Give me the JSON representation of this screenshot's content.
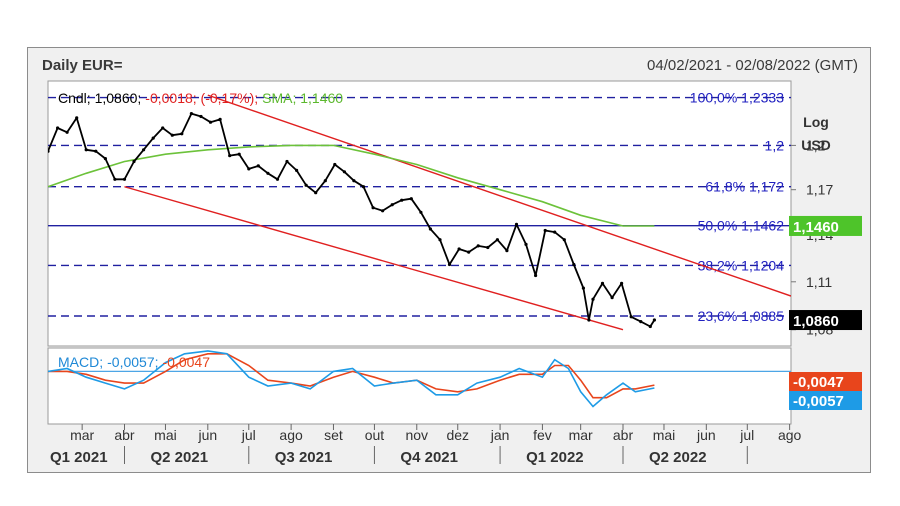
{
  "header": {
    "title": "Daily EUR=",
    "range": "04/02/2021 - 02/08/2022 (GMT)"
  },
  "chart_data": {
    "type": "line",
    "price_panel": {
      "legend": {
        "cndl_label": "Cndl; 1,0860;",
        "change": "-0,0018; (-0,17%);",
        "sma": "SMA; 1,1460"
      },
      "unit": [
        "Log",
        "USD"
      ],
      "y_scale": "log",
      "ylim": [
        1.07,
        1.245
      ],
      "y_ticks": [
        {
          "value": 1.2,
          "label": "1,2"
        },
        {
          "value": 1.17,
          "label": "1,17"
        },
        {
          "value": 1.14,
          "label": "1,14"
        },
        {
          "value": 1.11,
          "label": "1,11"
        },
        {
          "value": 1.08,
          "label": "1,08"
        }
      ],
      "fib_levels": [
        {
          "value": 1.2333,
          "label": "100,0% 1,2333"
        },
        {
          "value": 1.2,
          "label": "1,2"
        },
        {
          "value": 1.172,
          "label": "61,8% 1,172"
        },
        {
          "value": 1.1462,
          "label": "50,0% 1,1462"
        },
        {
          "value": 1.1204,
          "label": "38,2% 1,1204"
        },
        {
          "value": 1.0885,
          "label": "23,6% 1,0885"
        }
      ],
      "price_badge": {
        "label": "1,0860",
        "color": "#000000"
      },
      "sma_badge": {
        "label": "1,1460",
        "color": "#4ec42a"
      },
      "channel": {
        "color": "#e02020",
        "upper": [
          [
            "2021-06-01",
            1.235
          ],
          [
            "2022-08-02",
            1.101
          ]
        ],
        "lower": [
          [
            "2021-04-01",
            1.172
          ],
          [
            "2022-04-01",
            1.08
          ]
        ]
      },
      "close": [
        [
          "2021-02-04",
          1.196
        ],
        [
          "2021-02-11",
          1.212
        ],
        [
          "2021-02-18",
          1.209
        ],
        [
          "2021-02-25",
          1.219
        ],
        [
          "2021-03-04",
          1.197
        ],
        [
          "2021-03-11",
          1.196
        ],
        [
          "2021-03-18",
          1.191
        ],
        [
          "2021-03-25",
          1.177
        ],
        [
          "2021-04-01",
          1.177
        ],
        [
          "2021-04-08",
          1.189
        ],
        [
          "2021-04-15",
          1.197
        ],
        [
          "2021-04-22",
          1.205
        ],
        [
          "2021-04-29",
          1.212
        ],
        [
          "2021-05-06",
          1.207
        ],
        [
          "2021-05-13",
          1.208
        ],
        [
          "2021-05-20",
          1.222
        ],
        [
          "2021-05-27",
          1.22
        ],
        [
          "2021-06-03",
          1.216
        ],
        [
          "2021-06-10",
          1.218
        ],
        [
          "2021-06-17",
          1.193
        ],
        [
          "2021-06-24",
          1.194
        ],
        [
          "2021-07-01",
          1.184
        ],
        [
          "2021-07-08",
          1.186
        ],
        [
          "2021-07-15",
          1.181
        ],
        [
          "2021-07-22",
          1.177
        ],
        [
          "2021-07-29",
          1.189
        ],
        [
          "2021-08-05",
          1.183
        ],
        [
          "2021-08-12",
          1.173
        ],
        [
          "2021-08-19",
          1.168
        ],
        [
          "2021-08-26",
          1.176
        ],
        [
          "2021-09-02",
          1.187
        ],
        [
          "2021-09-09",
          1.182
        ],
        [
          "2021-09-16",
          1.176
        ],
        [
          "2021-09-23",
          1.172
        ],
        [
          "2021-09-30",
          1.158
        ],
        [
          "2021-10-07",
          1.156
        ],
        [
          "2021-10-14",
          1.16
        ],
        [
          "2021-10-21",
          1.163
        ],
        [
          "2021-10-28",
          1.164
        ],
        [
          "2021-11-04",
          1.155
        ],
        [
          "2021-11-11",
          1.144
        ],
        [
          "2021-11-18",
          1.137
        ],
        [
          "2021-11-25",
          1.121
        ],
        [
          "2021-12-02",
          1.131
        ],
        [
          "2021-12-09",
          1.129
        ],
        [
          "2021-12-16",
          1.133
        ],
        [
          "2021-12-23",
          1.132
        ],
        [
          "2021-12-30",
          1.137
        ],
        [
          "2022-01-06",
          1.13
        ],
        [
          "2022-01-13",
          1.147
        ],
        [
          "2022-01-20",
          1.134
        ],
        [
          "2022-01-27",
          1.114
        ],
        [
          "2022-02-03",
          1.143
        ],
        [
          "2022-02-10",
          1.142
        ],
        [
          "2022-02-17",
          1.137
        ],
        [
          "2022-02-24",
          1.121
        ],
        [
          "2022-03-03",
          1.106
        ],
        [
          "2022-03-07",
          1.086
        ],
        [
          "2022-03-10",
          1.099
        ],
        [
          "2022-03-17",
          1.109
        ],
        [
          "2022-03-24",
          1.1
        ],
        [
          "2022-03-31",
          1.109
        ],
        [
          "2022-04-07",
          1.088
        ],
        [
          "2022-04-14",
          1.085
        ],
        [
          "2022-04-21",
          1.082
        ],
        [
          "2022-04-24",
          1.086
        ]
      ],
      "sma": [
        [
          "2021-02-04",
          1.172
        ],
        [
          "2021-03-04",
          1.181
        ],
        [
          "2021-04-01",
          1.189
        ],
        [
          "2021-05-01",
          1.194
        ],
        [
          "2021-06-01",
          1.197
        ],
        [
          "2021-07-01",
          1.199
        ],
        [
          "2021-08-01",
          1.2
        ],
        [
          "2021-09-01",
          1.2
        ],
        [
          "2021-10-01",
          1.194
        ],
        [
          "2021-11-01",
          1.187
        ],
        [
          "2021-12-01",
          1.178
        ],
        [
          "2022-01-01",
          1.17
        ],
        [
          "2022-02-01",
          1.162
        ],
        [
          "2022-03-01",
          1.153
        ],
        [
          "2022-04-01",
          1.146
        ],
        [
          "2022-04-24",
          1.146
        ]
      ]
    },
    "macd_panel": {
      "legend": {
        "prefix": "MACD;",
        "macd": "-0,0057;",
        "signal": "-0,0047"
      },
      "badges": [
        {
          "label": "-0,0047",
          "color": "#e8451c"
        },
        {
          "label": "-0,0057",
          "color": "#1e9be6"
        }
      ],
      "ylim": [
        -0.018,
        0.008
      ],
      "zero_line": 0,
      "macd": [
        [
          "2021-02-04",
          0.0
        ],
        [
          "2021-02-18",
          0.001
        ],
        [
          "2021-03-04",
          -0.002
        ],
        [
          "2021-03-18",
          -0.004
        ],
        [
          "2021-04-01",
          -0.006
        ],
        [
          "2021-04-15",
          -0.003
        ],
        [
          "2021-05-01",
          0.003
        ],
        [
          "2021-05-15",
          0.006
        ],
        [
          "2021-06-01",
          0.007
        ],
        [
          "2021-06-15",
          0.006
        ],
        [
          "2021-07-01",
          -0.002
        ],
        [
          "2021-07-15",
          -0.005
        ],
        [
          "2021-08-01",
          -0.004
        ],
        [
          "2021-08-15",
          -0.006
        ],
        [
          "2021-09-01",
          0.0
        ],
        [
          "2021-09-15",
          0.001
        ],
        [
          "2021-10-01",
          -0.005
        ],
        [
          "2021-10-15",
          -0.004
        ],
        [
          "2021-11-01",
          -0.003
        ],
        [
          "2021-11-15",
          -0.008
        ],
        [
          "2021-12-01",
          -0.008
        ],
        [
          "2021-12-15",
          -0.004
        ],
        [
          "2022-01-01",
          -0.002
        ],
        [
          "2022-01-15",
          0.001
        ],
        [
          "2022-02-01",
          -0.002
        ],
        [
          "2022-02-10",
          0.004
        ],
        [
          "2022-02-20",
          0.001
        ],
        [
          "2022-03-01",
          -0.007
        ],
        [
          "2022-03-10",
          -0.012
        ],
        [
          "2022-03-20",
          -0.008
        ],
        [
          "2022-04-01",
          -0.004
        ],
        [
          "2022-04-10",
          -0.007
        ],
        [
          "2022-04-24",
          -0.0057
        ]
      ],
      "signal": [
        [
          "2021-02-04",
          0.0
        ],
        [
          "2021-02-18",
          0.0
        ],
        [
          "2021-03-04",
          -0.001
        ],
        [
          "2021-03-18",
          -0.003
        ],
        [
          "2021-04-01",
          -0.004
        ],
        [
          "2021-04-15",
          -0.004
        ],
        [
          "2021-05-01",
          0.0
        ],
        [
          "2021-05-15",
          0.004
        ],
        [
          "2021-06-01",
          0.006
        ],
        [
          "2021-06-15",
          0.006
        ],
        [
          "2021-07-01",
          0.002
        ],
        [
          "2021-07-15",
          -0.003
        ],
        [
          "2021-08-01",
          -0.004
        ],
        [
          "2021-08-15",
          -0.005
        ],
        [
          "2021-09-01",
          -0.002
        ],
        [
          "2021-09-15",
          0.0
        ],
        [
          "2021-10-01",
          -0.002
        ],
        [
          "2021-10-15",
          -0.004
        ],
        [
          "2021-11-01",
          -0.003
        ],
        [
          "2021-11-15",
          -0.006
        ],
        [
          "2021-12-01",
          -0.007
        ],
        [
          "2021-12-15",
          -0.006
        ],
        [
          "2022-01-01",
          -0.003
        ],
        [
          "2022-01-15",
          -0.001
        ],
        [
          "2022-02-01",
          -0.001
        ],
        [
          "2022-02-10",
          0.002
        ],
        [
          "2022-02-20",
          0.002
        ],
        [
          "2022-03-01",
          -0.003
        ],
        [
          "2022-03-10",
          -0.009
        ],
        [
          "2022-03-20",
          -0.009
        ],
        [
          "2022-04-01",
          -0.006
        ],
        [
          "2022-04-10",
          -0.006
        ],
        [
          "2022-04-24",
          -0.0047
        ]
      ]
    },
    "x_axis": {
      "xlim": [
        "2021-02-04",
        "2022-08-02"
      ],
      "months": [
        {
          "label": "mar",
          "date": "2021-03-01"
        },
        {
          "label": "abr",
          "date": "2021-04-01"
        },
        {
          "label": "mai",
          "date": "2021-05-01"
        },
        {
          "label": "jun",
          "date": "2021-06-01"
        },
        {
          "label": "jul",
          "date": "2021-07-01"
        },
        {
          "label": "ago",
          "date": "2021-08-01"
        },
        {
          "label": "set",
          "date": "2021-09-01"
        },
        {
          "label": "out",
          "date": "2021-10-01"
        },
        {
          "label": "nov",
          "date": "2021-11-01"
        },
        {
          "label": "dez",
          "date": "2021-12-01"
        },
        {
          "label": "jan",
          "date": "2022-01-01"
        },
        {
          "label": "fev",
          "date": "2022-02-01"
        },
        {
          "label": "mar",
          "date": "2022-03-01"
        },
        {
          "label": "abr",
          "date": "2022-04-01"
        },
        {
          "label": "mai",
          "date": "2022-05-01"
        },
        {
          "label": "jun",
          "date": "2022-06-01"
        },
        {
          "label": "jul",
          "date": "2022-07-01"
        },
        {
          "label": "ago",
          "date": "2022-08-01"
        }
      ],
      "quarters": [
        {
          "label": "Q1 2021",
          "start": "2021-02-04",
          "end": "2021-04-01"
        },
        {
          "label": "Q2 2021",
          "start": "2021-04-01",
          "end": "2021-07-01"
        },
        {
          "label": "Q3 2021",
          "start": "2021-07-01",
          "end": "2021-10-01"
        },
        {
          "label": "Q4 2021",
          "start": "2021-10-01",
          "end": "2022-01-01"
        },
        {
          "label": "Q1 2022",
          "start": "2022-01-01",
          "end": "2022-04-01"
        },
        {
          "label": "Q2 2022",
          "start": "2022-04-01",
          "end": "2022-07-01"
        }
      ]
    },
    "colors": {
      "price": "#000000",
      "sma": "#6cc23a",
      "fib": "#2020a0",
      "macd": "#1e9be6",
      "signal": "#e8451c",
      "zero": "#4da6e6"
    }
  }
}
